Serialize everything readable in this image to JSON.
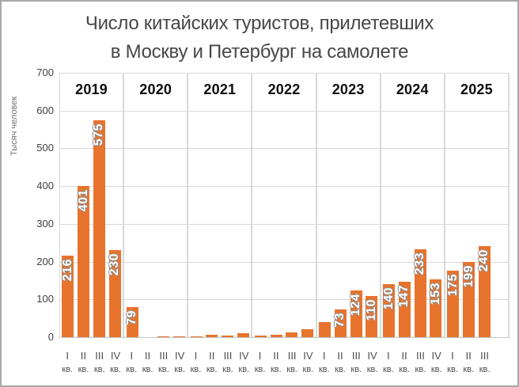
{
  "frame": {
    "border_color": "#a9a9a9",
    "background": "#ffffff"
  },
  "chart_data": {
    "type": "bar",
    "title_lines": [
      "Число китайских туристов, прилетевших",
      "в Москву и Петербург на самолете"
    ],
    "ylabel": "Тысяч человек",
    "ylim": [
      0,
      700
    ],
    "yticks": [
      700,
      600,
      500,
      400,
      300,
      200,
      100,
      0
    ],
    "grid": "on",
    "bar_color": "#e8732c",
    "quarter_suffix": "кв.",
    "years": [
      {
        "year": "2019",
        "quarters": [
          "I",
          "II",
          "III",
          "IV"
        ],
        "values": [
          216,
          401,
          575,
          230
        ],
        "labels": [
          "216",
          "401",
          "575",
          "230"
        ]
      },
      {
        "year": "2020",
        "quarters": [
          "I",
          "II",
          "III",
          "IV"
        ],
        "values": [
          79,
          0,
          1,
          2
        ],
        "labels": [
          "79",
          "",
          "",
          ""
        ]
      },
      {
        "year": "2021",
        "quarters": [
          "I",
          "II",
          "III",
          "IV"
        ],
        "values": [
          2,
          7,
          5,
          11
        ],
        "labels": [
          "",
          "",
          "",
          ""
        ]
      },
      {
        "year": "2022",
        "quarters": [
          "I",
          "II",
          "III",
          "IV"
        ],
        "values": [
          4,
          7,
          13,
          22
        ],
        "labels": [
          "",
          "",
          "",
          ""
        ]
      },
      {
        "year": "2023",
        "quarters": [
          "I",
          "II",
          "III",
          "IV"
        ],
        "values": [
          40,
          73,
          124,
          110
        ],
        "labels": [
          "",
          "73",
          "124",
          "110"
        ]
      },
      {
        "year": "2024",
        "quarters": [
          "I",
          "II",
          "III",
          "IV"
        ],
        "values": [
          140,
          147,
          233,
          153
        ],
        "labels": [
          "140",
          "147",
          "233",
          "153"
        ]
      },
      {
        "year": "2025",
        "quarters": [
          "I",
          "II",
          "III",
          null
        ],
        "values": [
          175,
          199,
          240,
          null
        ],
        "labels": [
          "175",
          "199",
          "240",
          null
        ]
      }
    ]
  }
}
